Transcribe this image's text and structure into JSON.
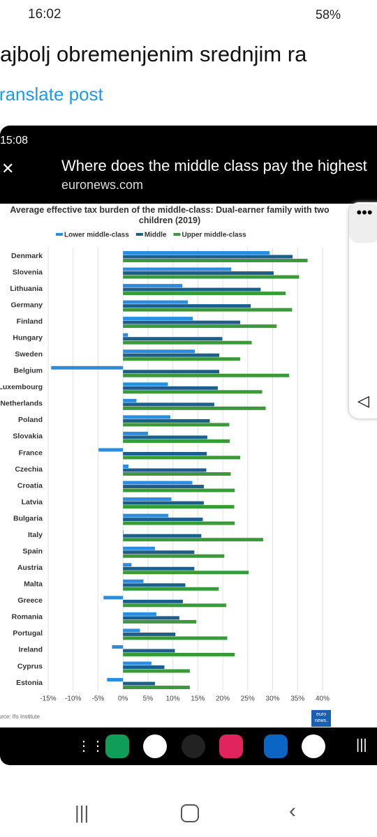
{
  "status_bar": {
    "time": "16:02",
    "battery": "58%"
  },
  "post": {
    "text": "ajbolj obremenjenim srednjim ra",
    "translate": "Translate post"
  },
  "inner": {
    "time": "15:08",
    "title": "Where does the middle class pay the highest",
    "domain": "euronews.com",
    "logo": "euro news."
  },
  "chart_data": {
    "type": "bar",
    "orientation": "horizontal",
    "title": "Average effective tax burden of the middle-class: Dual-earner family with two children (2019)",
    "legend": "top",
    "grid": true,
    "categories": [
      "Denmark",
      "Slovenia",
      "Lithuania",
      "Germany",
      "Finland",
      "Hungary",
      "Sweden",
      "Belgium",
      "Luxembourg",
      "Netherlands",
      "Poland",
      "Slovakia",
      "France",
      "Czechia",
      "Croatia",
      "Latvia",
      "Bulgaria",
      "Italy",
      "Spain",
      "Austria",
      "Malta",
      "Greece",
      "Romania",
      "Portugal",
      "Ireland",
      "Cyprus",
      "Estonia"
    ],
    "series": [
      {
        "name": "Lower middle-class",
        "color": "#2b8de0",
        "values": [
          29.4,
          21.7,
          11.9,
          13,
          14,
          1,
          14.4,
          -14.4,
          9,
          2.7,
          9.5,
          5,
          -4.9,
          1.1,
          13.9,
          9.7,
          9.1,
          0.1,
          6.4,
          1.7,
          4.1,
          -3.9,
          6.7,
          3.4,
          -2.2,
          5.7,
          -3.2
        ]
      },
      {
        "name": "Middle",
        "color": "#1d5f8a",
        "values": [
          34,
          30.2,
          27.6,
          25.6,
          23.5,
          19.9,
          19.3,
          19.3,
          19,
          18.3,
          17.4,
          16.9,
          16.8,
          16.7,
          16.2,
          16.2,
          16,
          15.7,
          14.3,
          14.3,
          12.5,
          12,
          11.3,
          10.5,
          10.4,
          8.3,
          6.4
        ]
      },
      {
        "name": "Upper middle-class",
        "color": "#3a9a3a",
        "values": [
          37,
          35.3,
          32.6,
          33.9,
          30.8,
          25.8,
          23.5,
          33.3,
          27.9,
          28.6,
          21.3,
          21.4,
          23.5,
          21.6,
          22.4,
          22.3,
          22.4,
          28.1,
          20.3,
          25.2,
          19.2,
          20.7,
          14.7,
          20.9,
          22.4,
          13.4,
          13.4
        ]
      }
    ],
    "xlim": [
      -15,
      40
    ],
    "xticks": [
      {
        "value": -15,
        "label": "-15%"
      },
      {
        "value": -10,
        "label": "-10%"
      },
      {
        "value": -5,
        "label": "-5%"
      },
      {
        "value": 0,
        "label": "0%"
      },
      {
        "value": 5,
        "label": "5%"
      },
      {
        "value": 10,
        "label": "10%"
      },
      {
        "value": 15,
        "label": "15%"
      },
      {
        "value": 20,
        "label": "20%"
      },
      {
        "value": 25,
        "label": "25%"
      },
      {
        "value": 30,
        "label": "30%"
      },
      {
        "value": 35,
        "label": "35%"
      },
      {
        "value": 40,
        "label": "40%"
      }
    ],
    "source": "Source: Ifo Institute"
  }
}
